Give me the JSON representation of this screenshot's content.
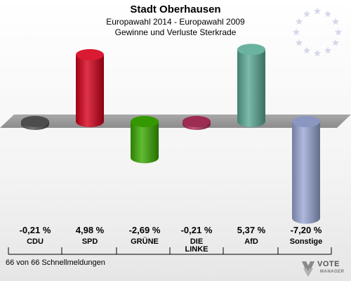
{
  "header": {
    "title": "Stadt Oberhausen",
    "subtitle": "Europawahl 2014 - Europawahl 2009",
    "subtitle2": "Gewinne und Verluste Sterkrade"
  },
  "footer": {
    "note": "66 von 66 Schnellmeldungen",
    "logo_text": "VOTE",
    "logo_sub": "MANAGER"
  },
  "chart_data": {
    "type": "bar",
    "categories": [
      "CDU",
      "SPD",
      "GRÜNE",
      "DIE\nLINKE",
      "AfD",
      "Sonstige"
    ],
    "values": [
      -0.21,
      4.98,
      -2.69,
      -0.21,
      5.37,
      -7.2
    ],
    "labels": [
      "-0,21 %",
      "4,98 %",
      "-2,69 %",
      "-0,21 %",
      "5,37 %",
      "-7,20 %"
    ],
    "colors": [
      "#555555",
      "#d6001c",
      "#3aaa00",
      "#b0305a",
      "#5aaa96",
      "#9aa8d6"
    ],
    "baseline": 0
  }
}
